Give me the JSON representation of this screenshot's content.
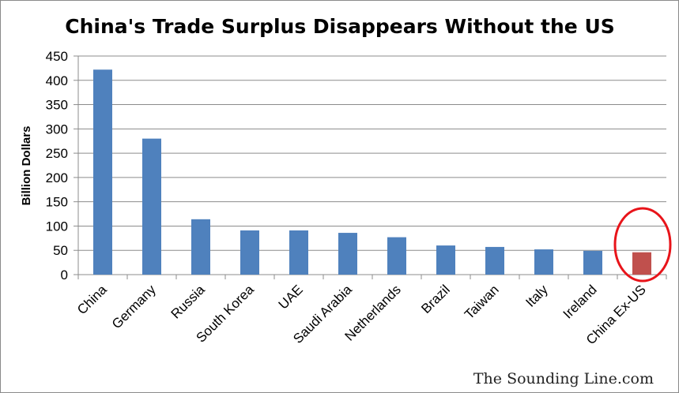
{
  "chart_data": {
    "type": "bar",
    "title": "China's Trade Surplus Disappears Without the US",
    "xlabel": "",
    "ylabel": "Billion Dollars",
    "ylim": [
      0,
      450
    ],
    "yticks": [
      0,
      50,
      100,
      150,
      200,
      250,
      300,
      350,
      400,
      450
    ],
    "grid": "horizontal",
    "legend": "none",
    "categories": [
      "China",
      "Germany",
      "Russia",
      "South Korea",
      "UAE",
      "Saudi Arabia",
      "Netherlands",
      "Brazil",
      "Taiwan",
      "Italy",
      "Ireland",
      "China Ex-US"
    ],
    "values": [
      422,
      280,
      114,
      91,
      91,
      86,
      77,
      60,
      57,
      52,
      49,
      46
    ],
    "highlight_index": 11,
    "annotation": "red-ellipse-around-last-bar"
  },
  "colors": {
    "bar": "#4f81bd",
    "highlight_bar": "#c0504d",
    "ellipse": "#e8141a",
    "grid": "#8c8c8c"
  },
  "watermark": "The Sounding Line.com"
}
